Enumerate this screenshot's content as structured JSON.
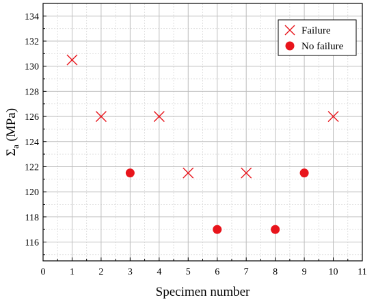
{
  "chart_data": {
    "type": "scatter",
    "xlabel": "Specimen number",
    "ylabel_main": "Σ",
    "ylabel_sub": "a",
    "ylabel_unit": " (MPa)",
    "xlim": [
      0,
      11
    ],
    "ylim": [
      114.5,
      135
    ],
    "xticks": [
      0,
      1,
      2,
      3,
      4,
      5,
      6,
      7,
      8,
      9,
      10,
      11
    ],
    "yticks": [
      116,
      118,
      120,
      122,
      124,
      126,
      128,
      130,
      132,
      134
    ],
    "grid": true,
    "legend_position": "top-right",
    "series": [
      {
        "name": "Failure",
        "marker": "x",
        "color": "#e8141b",
        "points": [
          {
            "x": 1,
            "y": 130.5
          },
          {
            "x": 2,
            "y": 126
          },
          {
            "x": 4,
            "y": 126
          },
          {
            "x": 5,
            "y": 121.5
          },
          {
            "x": 7,
            "y": 121.5
          },
          {
            "x": 10,
            "y": 126
          }
        ]
      },
      {
        "name": "No failure",
        "marker": "circle",
        "color": "#e8141b",
        "points": [
          {
            "x": 3,
            "y": 121.5
          },
          {
            "x": 6,
            "y": 117
          },
          {
            "x": 8,
            "y": 117
          },
          {
            "x": 9,
            "y": 121.5
          }
        ]
      }
    ]
  }
}
